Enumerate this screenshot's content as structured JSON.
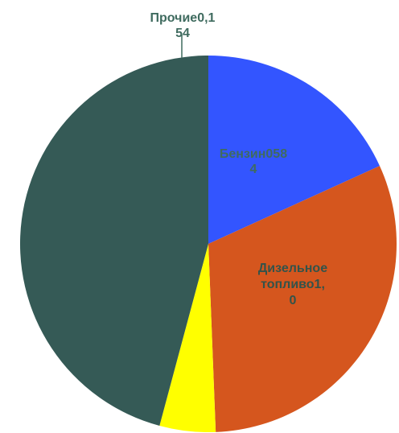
{
  "chart_data": {
    "type": "pie",
    "categories": [
      "Бензин",
      "Дизельное топливо",
      "Прочие",
      ""
    ],
    "values": [
      0.584,
      1.0,
      0.154,
      1.47
    ],
    "labels": [
      {
        "lines": [
          "Бензин058",
          "4"
        ],
        "color": "#3f6b5f"
      },
      {
        "lines": [
          "Дизельное",
          "топливо1,",
          "0"
        ],
        "color": "#33534a"
      },
      {
        "lines": [
          "Прочие0,1",
          "54"
        ],
        "color": "#3f6b5f"
      },
      null
    ],
    "colors": [
      "#3355ff",
      "#d5561e",
      "#ffff00",
      "#355a56"
    ],
    "start_angle_deg": 0,
    "direction": "clockwise"
  }
}
